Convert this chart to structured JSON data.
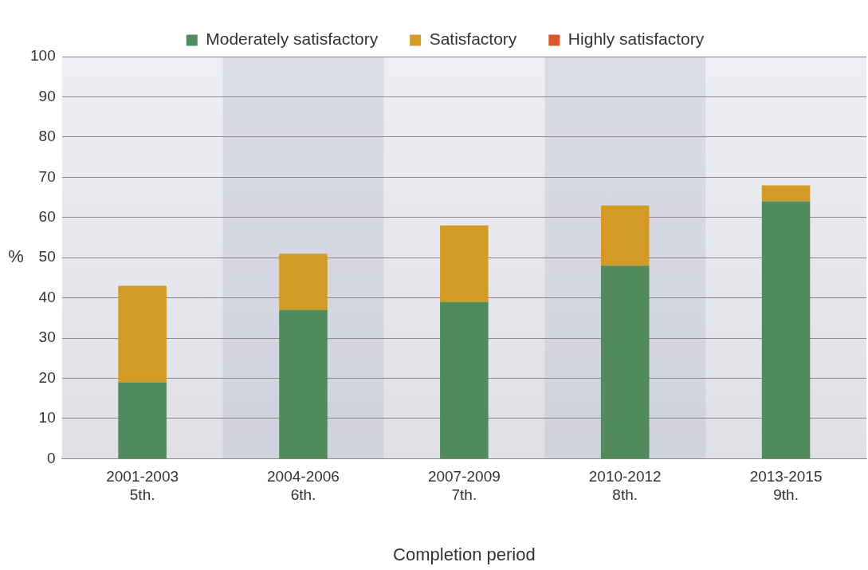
{
  "chart_data": {
    "type": "bar",
    "stacked": true,
    "xlabel": "Completion period",
    "ylabel": "%",
    "categories": [
      "2001-2003\n5th.",
      "2004-2006\n6th.",
      "2007-2009\n7th.",
      "2010-2012\n8th.",
      "2013-2015\n9th."
    ],
    "series": [
      {
        "name": "Moderately satisfactory",
        "color": "#518b5c",
        "values": [
          19,
          37,
          39,
          48,
          64
        ]
      },
      {
        "name": "Satisfactory",
        "color": "#d39a26",
        "values": [
          24,
          14,
          19,
          15,
          4
        ]
      },
      {
        "name": "Highly satisfactory",
        "color": "#d9572a",
        "values": [
          0,
          0,
          0,
          0,
          0
        ]
      }
    ],
    "ylim": [
      0,
      100
    ],
    "yticks": [
      0,
      10,
      20,
      30,
      40,
      50,
      60,
      70,
      80,
      90,
      100
    ],
    "grid": "y",
    "legend": "top"
  }
}
